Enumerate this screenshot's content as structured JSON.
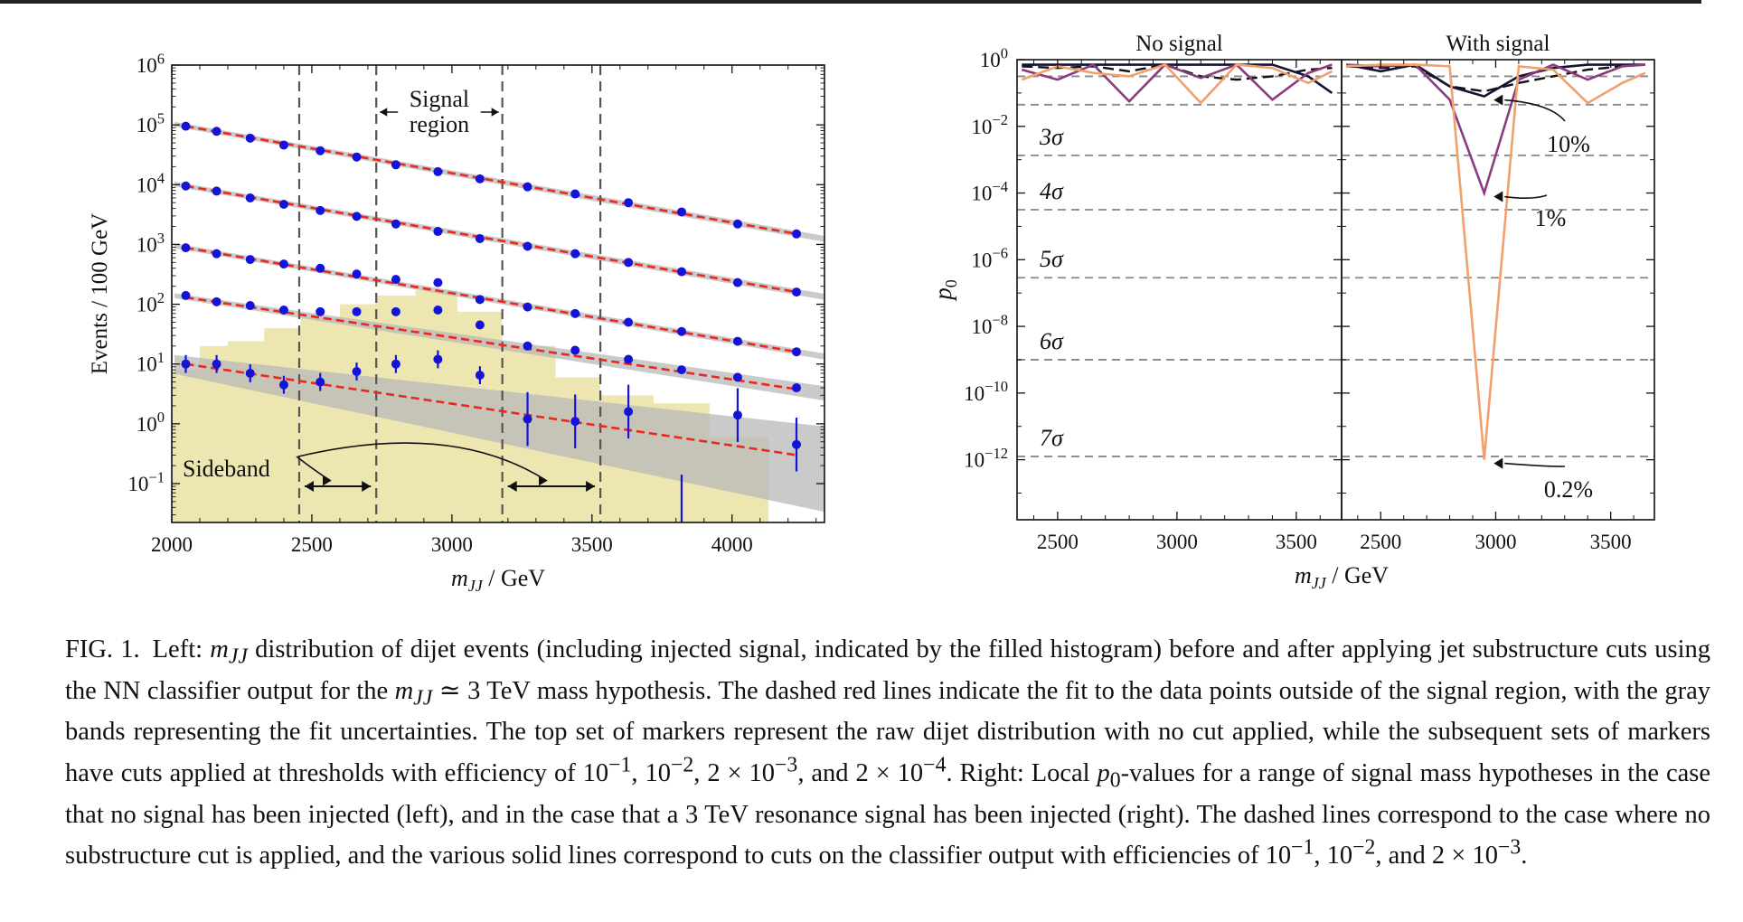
{
  "chart_data": [
    {
      "type": "scatter",
      "panel": "left",
      "xlabel": "m_JJ / GeV",
      "ylabel": "Events / 100 GeV",
      "xlim": [
        2000,
        4330
      ],
      "ylim_log10": [
        -1.65,
        6
      ],
      "y_scale": "log",
      "x_ticks": [
        2000,
        2500,
        3000,
        3500,
        4000
      ],
      "x_tick_labels": [
        "2000",
        "2500",
        "3000",
        "3500",
        "4000"
      ],
      "y_tick_exponents": [
        -1,
        0,
        1,
        2,
        3,
        4,
        5,
        6
      ],
      "signal_region_lines": [
        2730,
        3180
      ],
      "sideband_lines": [
        2455,
        3530
      ],
      "annotations": {
        "signal_region": [
          "Signal",
          "region"
        ],
        "sideband": "Sideband"
      },
      "x": [
        2050,
        2160,
        2280,
        2400,
        2530,
        2660,
        2800,
        2950,
        3100,
        3270,
        3440,
        3630,
        3820,
        4020,
        4230
      ],
      "series": [
        {
          "values": [
            95000,
            78000,
            60000,
            46000,
            37000,
            29000,
            21500,
            16500,
            12500,
            9200,
            7000,
            5000,
            3500,
            2200,
            1500
          ]
        },
        {
          "values": [
            9500,
            7800,
            6000,
            4700,
            3700,
            2950,
            2200,
            1650,
            1250,
            930,
            700,
            500,
            350,
            230,
            160
          ]
        },
        {
          "values": [
            880,
            700,
            560,
            470,
            400,
            320,
            260,
            230,
            120,
            90,
            70,
            50,
            35,
            24,
            16
          ]
        },
        {
          "values": [
            140,
            110,
            95,
            80,
            75,
            75,
            75,
            80,
            45,
            20,
            17,
            12,
            8,
            6,
            4
          ]
        },
        {
          "values": [
            10,
            10,
            7,
            4.5,
            5,
            7.5,
            10,
            12,
            6.5,
            1.2,
            1.1,
            1.6,
            0.05,
            1.4,
            0.45
          ]
        }
      ],
      "fits": [
        {
          "y_start": 95000,
          "y_end": 1500
        },
        {
          "y_start": 9500,
          "y_end": 160
        },
        {
          "y_start": 880,
          "y_end": 16
        },
        {
          "y_start": 130,
          "y_end": 3.8
        },
        {
          "y_start": 10,
          "y_end": 0.3
        }
      ],
      "histogram": {
        "edges": [
          2000,
          2100,
          2200,
          2330,
          2460,
          2600,
          2730,
          2870,
          3020,
          3180,
          3370,
          3530,
          3720,
          3920,
          4130
        ],
        "values": [
          8,
          20,
          24,
          40,
          60,
          100,
          140,
          170,
          75,
          20,
          6,
          3,
          2.2,
          0.6
        ]
      }
    },
    {
      "type": "line",
      "panel": "right-left",
      "title": "No signal",
      "ylabel": "p_0",
      "xlabel": "m_JJ / GeV",
      "y_scale": "log",
      "ylim_log10": [
        -13.8,
        0
      ],
      "xlim": [
        2330,
        3690
      ],
      "x_ticks": [
        2500,
        3000,
        3500
      ],
      "y_tick_exponents": [
        0,
        -2,
        -4,
        -6,
        -8,
        -10,
        -12
      ],
      "sigma_lines": [
        {
          "label": "3σ",
          "log10p": -2.87
        },
        {
          "label": "4σ",
          "log10p": -4.5
        },
        {
          "label": "5σ",
          "log10p": -6.54
        },
        {
          "label": "6σ",
          "log10p": -9.0
        },
        {
          "label": "7σ",
          "log10p": -11.9
        }
      ],
      "x": [
        2350,
        2500,
        2650,
        2800,
        2950,
        3100,
        3250,
        3400,
        3550,
        3650
      ],
      "series": [
        {
          "style": "dashed",
          "color": "#111111",
          "log10p": [
            -0.2,
            -0.25,
            -0.2,
            -0.35,
            -0.15,
            -0.5,
            -0.6,
            -0.5,
            -0.3,
            -0.25
          ]
        },
        {
          "style": "solid",
          "color": "#141432",
          "log10p": [
            -0.15,
            -0.15,
            -0.15,
            -0.15,
            -0.15,
            -0.15,
            -0.15,
            -0.15,
            -0.5,
            -1.0
          ]
        },
        {
          "style": "solid",
          "color": "#8b3b80",
          "log10p": [
            -0.3,
            -0.6,
            -0.15,
            -1.25,
            -0.15,
            -0.55,
            -0.15,
            -1.2,
            -0.4,
            -0.15
          ]
        },
        {
          "style": "solid",
          "color": "#f2a06c",
          "log10p": [
            -0.6,
            -0.2,
            -0.4,
            -0.5,
            -0.15,
            -1.3,
            -0.15,
            -0.25,
            -0.7,
            -0.35
          ]
        }
      ]
    },
    {
      "type": "line",
      "panel": "right-right",
      "title": "With signal",
      "xlabel": "m_JJ / GeV",
      "y_scale": "log",
      "ylim_log10": [
        -13.8,
        0
      ],
      "xlim": [
        2330,
        3690
      ],
      "x_ticks": [
        2500,
        3000,
        3500
      ],
      "x": [
        2350,
        2500,
        2650,
        2800,
        2950,
        3100,
        3250,
        3400,
        3550,
        3650
      ],
      "series": [
        {
          "style": "dashed",
          "color": "#111111",
          "log10p": [
            -0.2,
            -0.25,
            -0.2,
            -0.8,
            -0.95,
            -0.7,
            -0.5,
            -0.3,
            -0.2,
            -0.15
          ]
        },
        {
          "style": "solid",
          "color": "#141432",
          "log10p": [
            -0.15,
            -0.35,
            -0.15,
            -0.8,
            -1.1,
            -0.5,
            -0.25,
            -0.15,
            -0.15,
            -0.15
          ]
        },
        {
          "style": "solid",
          "color": "#8b3b80",
          "log10p": [
            -0.15,
            -0.2,
            -0.15,
            -1.2,
            -4.0,
            -0.6,
            -0.15,
            -0.6,
            -0.2,
            -0.15
          ]
        },
        {
          "style": "solid",
          "color": "#f2a06c",
          "log10p": [
            -0.2,
            -0.15,
            -0.15,
            -0.2,
            -12.0,
            -0.2,
            -0.3,
            -1.3,
            -0.7,
            -0.4
          ]
        }
      ],
      "annotations": [
        {
          "label": "10%",
          "target_x": 2960,
          "target_log10p": -1.1
        },
        {
          "label": "1%",
          "target_x": 2960,
          "target_log10p": -4.0
        },
        {
          "label": "0.2%",
          "target_x": 2960,
          "target_log10p": -12.0
        }
      ]
    }
  ],
  "caption": {
    "label": "FIG. 1.",
    "html": "Left: <i>m<sub>JJ</sub></i> distribution of dijet events (including injected signal, indicated by the filled histogram) before and after applying jet substructure cuts using the NN classifier output for the <i>m<sub>JJ</sub></i> ≃ 3 TeV mass hypothesis. The dashed red lines indicate the fit to the data points outside of the signal region, with the gray bands representing the fit uncertainties. The top set of markers represent the raw dijet distribution with no cut applied, while the subsequent sets of markers have cuts applied at thresholds with efficiency of 10<sup>−1</sup>, 10<sup>−2</sup>, 2 × 10<sup>−3</sup>, and 2 × 10<sup>−4</sup>. Right: Local <i>p</i><sub>0</sub>-values for a range of signal mass hypotheses in the case that no signal has been injected (left), and in the case that a 3 TeV resonance signal has been injected (right). The dashed lines correspond to the case where no substructure cut is applied, and the various solid lines correspond to cuts on the classifier output with efficiencies of 10<sup>−1</sup>, 10<sup>−2</sup>, and 2 × 10<sup>−3</sup>."
  },
  "colors": {
    "markers": "#1414d8",
    "fit": "#e8291f",
    "band": "#b8b8b8",
    "histogram": "#ede6b0",
    "vertical_lines": "#555555"
  }
}
